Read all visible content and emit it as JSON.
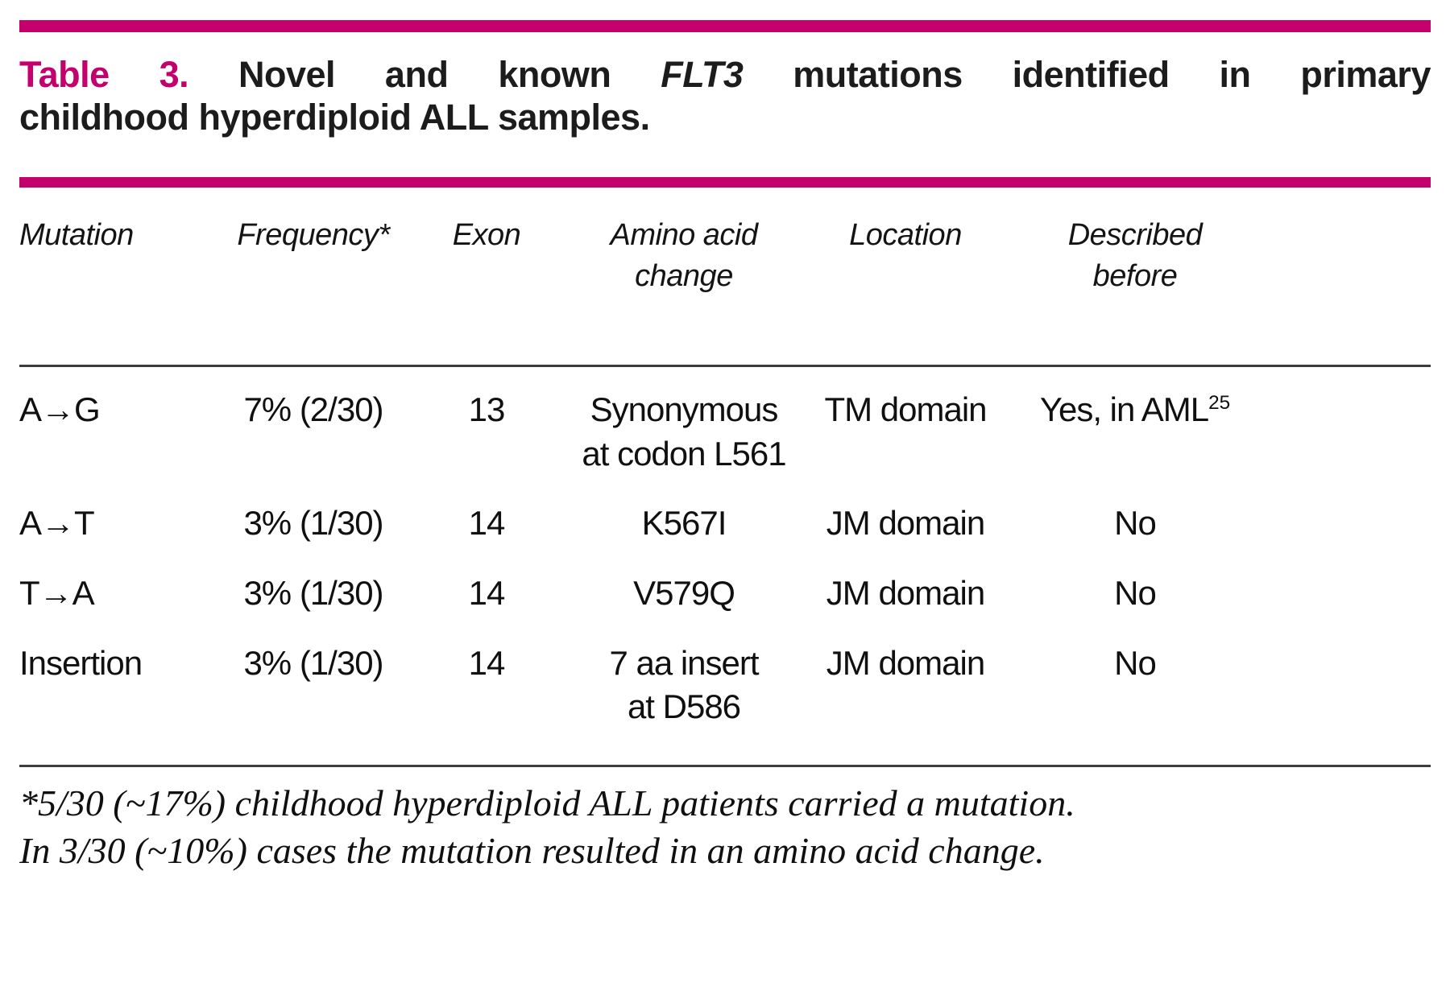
{
  "accent_color": "#c3006b",
  "title": {
    "label": "Table 3.",
    "line1_part1": "Novel and known",
    "gene": "FLT3",
    "line1_part2": "mutations identified in primary",
    "line2": "childhood hyperdiploid ALL samples."
  },
  "table": {
    "columns": [
      {
        "line1": "Mutation",
        "line2": ""
      },
      {
        "line1": "Frequency*",
        "line2": ""
      },
      {
        "line1": "Exon",
        "line2": ""
      },
      {
        "line1": "Amino acid",
        "line2": "change"
      },
      {
        "line1": "Location",
        "line2": ""
      },
      {
        "line1": "Described",
        "line2": "before"
      }
    ],
    "rows": [
      {
        "mutation": "A→G",
        "frequency": "7% (2/30)",
        "exon": "13",
        "amino_line1": "Synonymous",
        "amino_line2": "at codon L561",
        "location": "TM domain",
        "described": "Yes, in AML",
        "described_sup": "25"
      },
      {
        "mutation": "A→T",
        "frequency": "3% (1/30)",
        "exon": "14",
        "amino_line1": "K567I",
        "amino_line2": "",
        "location": "JM domain",
        "described": "No",
        "described_sup": ""
      },
      {
        "mutation": "T→A",
        "frequency": "3% (1/30)",
        "exon": "14",
        "amino_line1": "V579Q",
        "amino_line2": "",
        "location": "JM domain",
        "described": "No",
        "described_sup": ""
      },
      {
        "mutation": "Insertion",
        "frequency": "3% (1/30)",
        "exon": "14",
        "amino_line1": "7 aa insert",
        "amino_line2": "at D586",
        "location": "JM domain",
        "described": "No",
        "described_sup": ""
      }
    ]
  },
  "footnote": {
    "line1": "*5/30 (~17%) childhood hyperdiploid ALL patients carried a mutation.",
    "line2": "In 3/30 (~10%) cases the mutation resulted in an amino acid change."
  }
}
